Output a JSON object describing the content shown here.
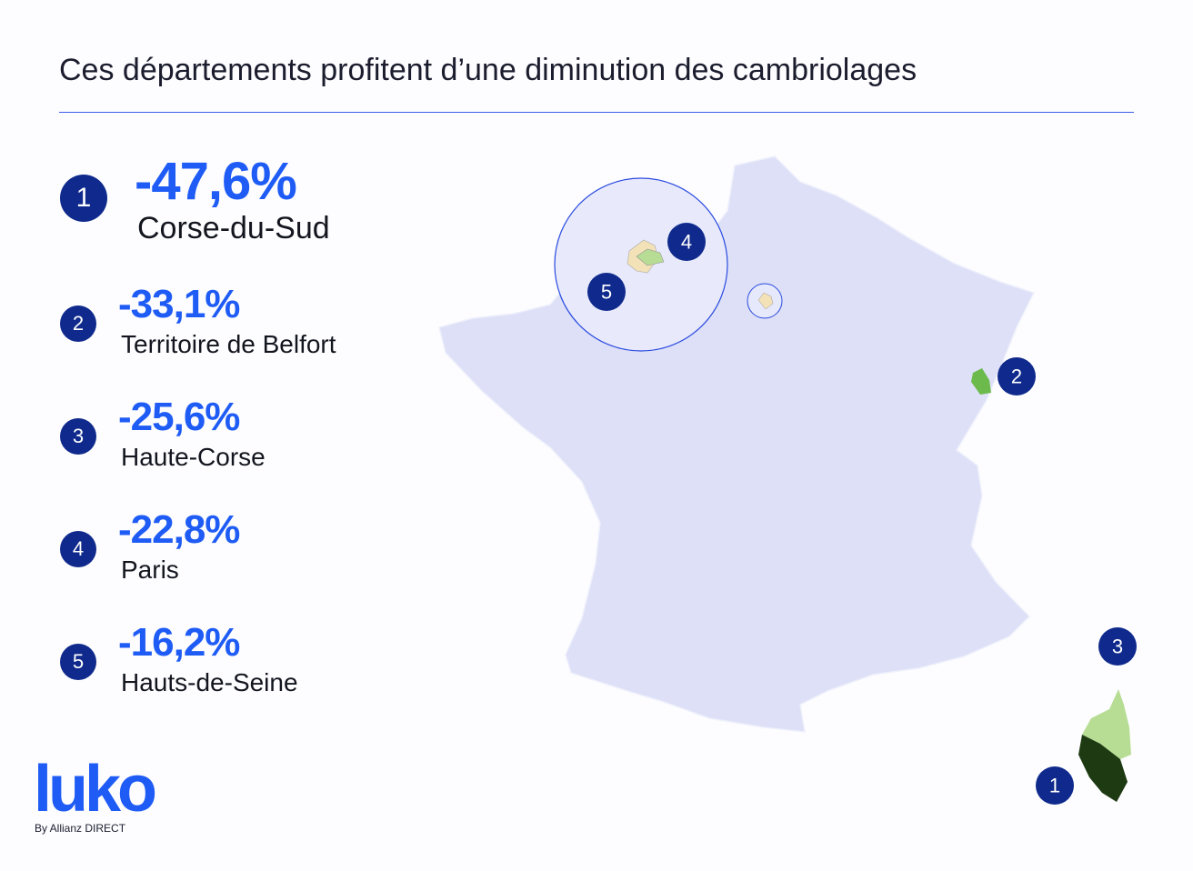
{
  "title": "Ces départements profitent d’une diminution des cambriolages",
  "items": [
    {
      "rank": "1",
      "value": "-47,6%",
      "department": "Corse-du-Sud"
    },
    {
      "rank": "2",
      "value": "-33,1%",
      "department": "Territoire de Belfort"
    },
    {
      "rank": "3",
      "value": "-25,6%",
      "department": "Haute-Corse"
    },
    {
      "rank": "4",
      "value": "-22,8%",
      "department": "Paris"
    },
    {
      "rank": "5",
      "value": "-16,2%",
      "department": "Hauts-de-Seine"
    }
  ],
  "map_markers": [
    "1",
    "2",
    "3",
    "4",
    "5"
  ],
  "logo": {
    "brand": "luko",
    "byline": "By Allianz DIRECT"
  },
  "colors": {
    "accent": "#1f5cf5",
    "badge": "#0f2a8c",
    "map": "#dde0f7",
    "highlight_light": "#b7dd94",
    "highlight_mid": "#6cba4c",
    "highlight_dark": "#1e3a12"
  }
}
